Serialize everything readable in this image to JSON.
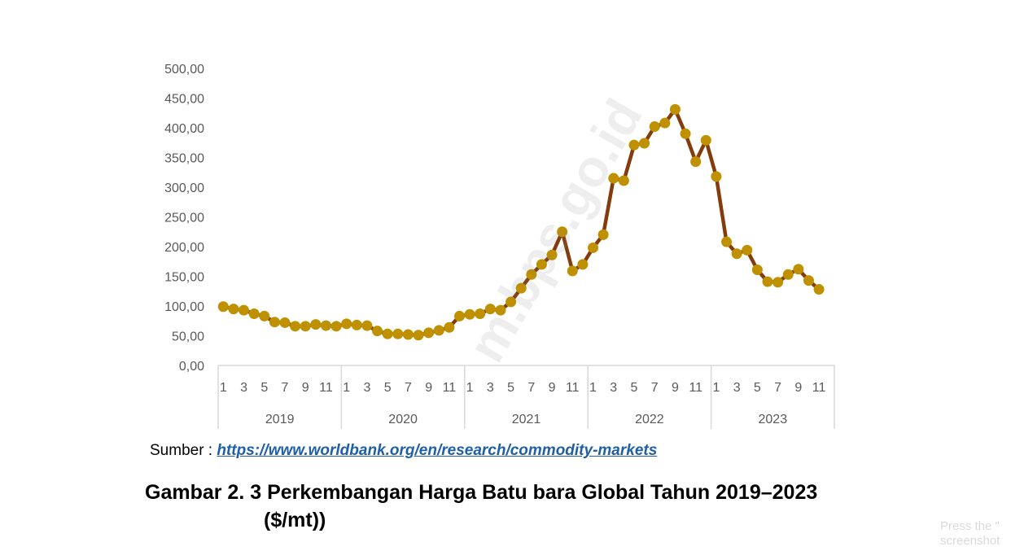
{
  "chart_data": {
    "type": "line",
    "title": "",
    "xlabel": "",
    "ylabel": "",
    "ylim": [
      0,
      500
    ],
    "y_ticks": [
      "0,00",
      "50,00",
      "100,00",
      "150,00",
      "200,00",
      "250,00",
      "300,00",
      "350,00",
      "400,00",
      "450,00",
      "500,00"
    ],
    "grid": false,
    "legend": "none",
    "x_tick_labels": [
      "1",
      "3",
      "5",
      "7",
      "9",
      "11"
    ],
    "years": [
      "2019",
      "2020",
      "2021",
      "2022",
      "2023"
    ],
    "series": [
      {
        "values": [
          99,
          95,
          93,
          87,
          83,
          73,
          72,
          66,
          66,
          69,
          67,
          66,
          70,
          68,
          67,
          58,
          53,
          53,
          52,
          51,
          55,
          59,
          64,
          83,
          86,
          87,
          95,
          93,
          107,
          130,
          153,
          170,
          186,
          225,
          159,
          170,
          198,
          220,
          315,
          311,
          371,
          374,
          402,
          408,
          431,
          390,
          343,
          379,
          318,
          208,
          188,
          194,
          161,
          141,
          140,
          153,
          162,
          143,
          128
        ]
      }
    ],
    "colors": {
      "line": "#843c0c",
      "marker": "#bf9000"
    }
  },
  "source": {
    "prefix": "Sumber : ",
    "link": "https://www.worldbank.org/en/research/commodity-markets"
  },
  "caption": {
    "line1": "Gambar 2. 3 Perkembangan Harga Batu bara Global Tahun 2019–2023",
    "line2": "($/mt))"
  },
  "watermark": "m.bps.go.id",
  "corner_note": {
    "line1": "Press the \"",
    "line2": "screenshot"
  }
}
